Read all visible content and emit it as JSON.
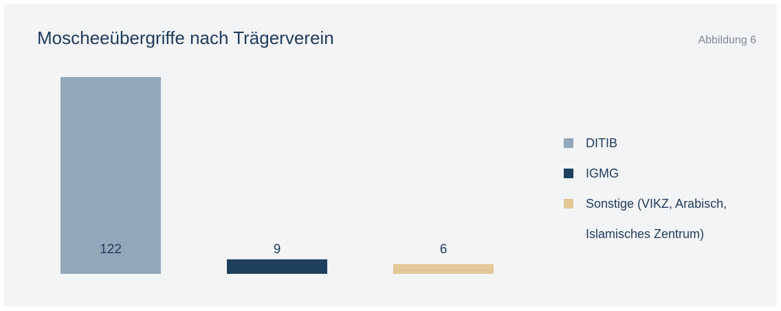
{
  "chart_data": {
    "type": "bar",
    "title": "Moscheeübergriffe nach Trägerverein",
    "subtitle": "Abbildung 6",
    "series": [
      {
        "name": "DITIB",
        "color": "#93a7bb",
        "values": [
          122
        ]
      },
      {
        "name": "IGMG",
        "color": "#1e3f5e",
        "values": [
          9
        ]
      },
      {
        "name": "Sonstige (VIKZ, Arabisch, Islamisches Zentrum)",
        "color": "#e2c797",
        "values": [
          6
        ]
      }
    ]
  }
}
